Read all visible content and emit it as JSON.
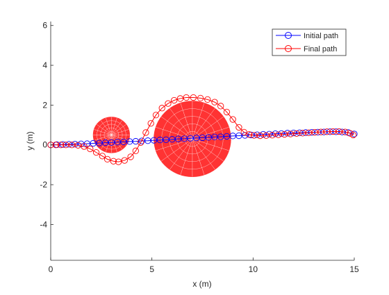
{
  "chart_data": {
    "type": "line",
    "title": "",
    "xlabel": "x (m)",
    "ylabel": "y (m)",
    "xlim": [
      0,
      15
    ],
    "ylim": [
      -5.8,
      6.2
    ],
    "xticks": [
      0,
      5,
      10,
      15
    ],
    "yticks": [
      -4,
      -2,
      0,
      2,
      4,
      6
    ],
    "xtick_labels": [
      "0",
      "5",
      "10",
      "15"
    ],
    "ytick_labels": [
      "-4",
      "-2",
      "0",
      "2",
      "4",
      "6"
    ],
    "grid": false,
    "legend_position": "top-right",
    "obstacles": [
      {
        "cx": 3.0,
        "cy": 0.5,
        "r": 0.9,
        "color": "#ff3333"
      },
      {
        "cx": 7.0,
        "cy": 0.3,
        "r": 1.9,
        "color": "#ff3333"
      }
    ],
    "series": [
      {
        "name": "Initial path",
        "color": "#0000ff",
        "x": [
          0.0,
          0.3,
          0.6,
          0.9,
          1.2,
          1.5,
          1.8,
          2.1,
          2.4,
          2.7,
          3.0,
          3.3,
          3.6,
          3.9,
          4.2,
          4.5,
          4.8,
          5.1,
          5.4,
          5.7,
          6.0,
          6.3,
          6.6,
          6.9,
          7.2,
          7.5,
          7.8,
          8.1,
          8.4,
          8.7,
          9.0,
          9.3,
          9.6,
          9.9,
          10.2,
          10.5,
          10.8,
          11.1,
          11.4,
          11.7,
          12.0,
          12.3,
          12.6,
          12.9,
          13.2,
          13.5,
          13.8,
          14.1,
          14.4,
          14.7,
          15.0
        ],
        "y": [
          0.0,
          0.01,
          0.02,
          0.03,
          0.04,
          0.05,
          0.06,
          0.08,
          0.09,
          0.11,
          0.12,
          0.14,
          0.15,
          0.17,
          0.18,
          0.2,
          0.21,
          0.23,
          0.25,
          0.26,
          0.28,
          0.3,
          0.31,
          0.33,
          0.35,
          0.36,
          0.38,
          0.4,
          0.41,
          0.43,
          0.45,
          0.46,
          0.48,
          0.5,
          0.51,
          0.53,
          0.54,
          0.56,
          0.57,
          0.59,
          0.6,
          0.61,
          0.62,
          0.63,
          0.64,
          0.65,
          0.66,
          0.66,
          0.65,
          0.62,
          0.55
        ]
      },
      {
        "name": "Final path",
        "color": "#ff0000",
        "x": [
          0.0,
          0.25,
          0.5,
          0.75,
          1.05,
          1.35,
          1.65,
          1.95,
          2.25,
          2.55,
          2.8,
          3.1,
          3.35,
          3.65,
          3.95,
          4.2,
          4.45,
          4.7,
          4.95,
          5.2,
          5.5,
          5.8,
          6.1,
          6.4,
          6.7,
          7.05,
          7.4,
          7.75,
          8.1,
          8.4,
          8.7,
          9.0,
          9.3,
          9.55,
          9.8,
          10.05,
          10.35,
          10.65,
          10.95,
          11.25,
          11.55,
          11.85,
          12.15,
          12.45,
          12.75,
          13.05,
          13.35,
          13.65,
          13.95,
          14.25,
          14.55,
          14.8,
          14.95
        ],
        "y": [
          0.0,
          0.0,
          0.0,
          0.0,
          0.0,
          -0.02,
          -0.08,
          -0.2,
          -0.38,
          -0.56,
          -0.72,
          -0.82,
          -0.85,
          -0.78,
          -0.6,
          -0.3,
          0.12,
          0.62,
          1.08,
          1.5,
          1.85,
          2.08,
          2.24,
          2.33,
          2.38,
          2.38,
          2.35,
          2.28,
          2.15,
          1.95,
          1.65,
          1.28,
          0.88,
          0.64,
          0.52,
          0.48,
          0.46,
          0.47,
          0.49,
          0.51,
          0.53,
          0.55,
          0.57,
          0.59,
          0.61,
          0.63,
          0.65,
          0.66,
          0.67,
          0.67,
          0.65,
          0.58,
          0.5
        ]
      }
    ]
  }
}
